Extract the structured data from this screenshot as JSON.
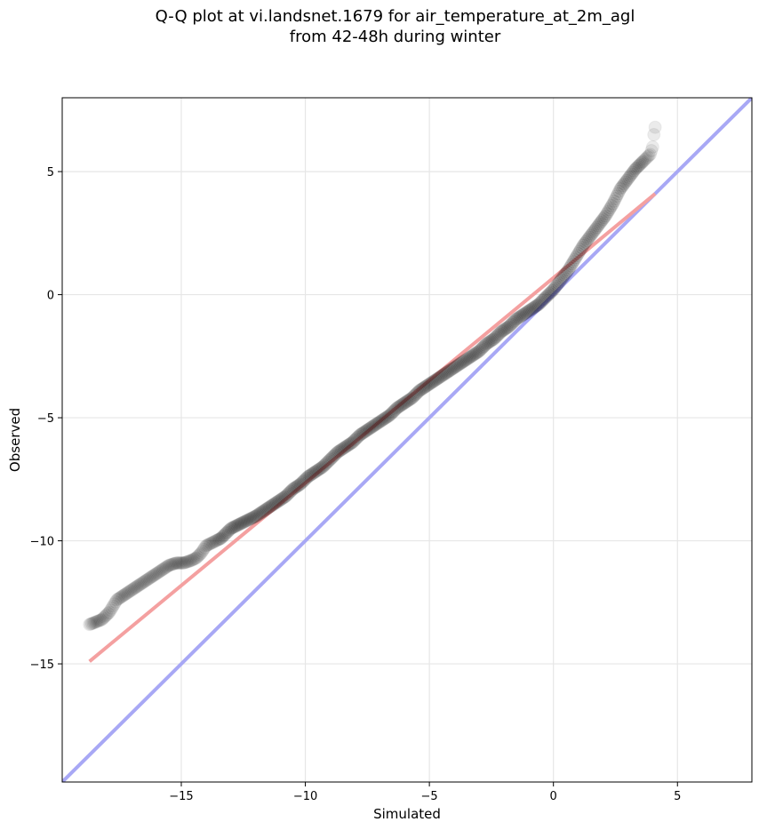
{
  "title_lines": [
    "Q-Q plot at vi.landsnet.1679 for air_temperature_at_2m_agl",
    "from 42-48h during winter"
  ],
  "chart_data": {
    "type": "scatter",
    "xlabel": "Simulated",
    "ylabel": "Observed",
    "xlim": [
      -19.8,
      8.0
    ],
    "ylim": [
      -19.8,
      8.0
    ],
    "xticks": [
      -15,
      -10,
      -5,
      0,
      5
    ],
    "yticks": [
      -15,
      -10,
      -5,
      0,
      5
    ],
    "xtick_labels": [
      "−15",
      "−10",
      "−5",
      "0",
      "5"
    ],
    "ytick_labels": [
      "−15",
      "−10",
      "−5",
      "0",
      "5"
    ],
    "grid": true,
    "colors": {
      "points": "#000000",
      "fit_line": "#f4a0a0",
      "identity_line": "#a8a8f5"
    },
    "quantiles": {
      "x": [
        -18.7,
        -18.2,
        -17.9,
        -17.6,
        -17.3,
        -17.0,
        -16.7,
        -16.4,
        -16.1,
        -15.8,
        -15.5,
        -15.2,
        -14.9,
        -14.6,
        -14.4,
        -14.2,
        -14.0,
        -13.8,
        -13.6,
        -13.4,
        -13.2,
        -13.0,
        -12.8,
        -12.6,
        -12.4,
        -12.2,
        -12.0,
        -11.7,
        -11.4,
        -11.1,
        -10.8,
        -10.5,
        -10.2,
        -9.9,
        -9.6,
        -9.3,
        -9.0,
        -8.7,
        -8.4,
        -8.1,
        -7.8,
        -7.5,
        -7.2,
        -6.9,
        -6.6,
        -6.3,
        -6.0,
        -5.7,
        -5.4,
        -5.1,
        -4.8,
        -4.5,
        -4.2,
        -3.9,
        -3.6,
        -3.3,
        -3.0,
        -2.7,
        -2.4,
        -2.1,
        -1.8,
        -1.5,
        -1.2,
        -0.9,
        -0.6,
        -0.3,
        0.0,
        0.3,
        0.6,
        0.9,
        1.2,
        1.5,
        1.8,
        2.1,
        2.4,
        2.7,
        3.0,
        3.3,
        3.5,
        3.7,
        3.9,
        4.0,
        4.05,
        4.1
      ],
      "y": [
        -13.4,
        -13.2,
        -12.9,
        -12.4,
        -12.2,
        -12.0,
        -11.8,
        -11.6,
        -11.4,
        -11.2,
        -11.0,
        -10.9,
        -10.9,
        -10.8,
        -10.7,
        -10.5,
        -10.2,
        -10.1,
        -10.0,
        -9.9,
        -9.7,
        -9.5,
        -9.4,
        -9.3,
        -9.2,
        -9.1,
        -9.0,
        -8.8,
        -8.6,
        -8.4,
        -8.2,
        -7.9,
        -7.7,
        -7.4,
        -7.2,
        -7.0,
        -6.7,
        -6.4,
        -6.2,
        -6.0,
        -5.7,
        -5.5,
        -5.3,
        -5.1,
        -4.9,
        -4.6,
        -4.4,
        -4.2,
        -3.9,
        -3.7,
        -3.5,
        -3.3,
        -3.1,
        -2.9,
        -2.7,
        -2.5,
        -2.3,
        -2.0,
        -1.8,
        -1.5,
        -1.3,
        -1.0,
        -0.8,
        -0.6,
        -0.4,
        -0.1,
        0.2,
        0.6,
        1.0,
        1.5,
        2.0,
        2.4,
        2.8,
        3.2,
        3.7,
        4.3,
        4.7,
        5.1,
        5.3,
        5.5,
        5.7,
        6.0,
        6.5,
        6.8
      ]
    },
    "fit_line": {
      "x": [
        -18.7,
        4.1
      ],
      "y": [
        -14.9,
        4.1
      ]
    },
    "identity_line": {
      "x": [
        -19.8,
        8.0
      ],
      "y": [
        -19.8,
        8.0
      ]
    }
  }
}
